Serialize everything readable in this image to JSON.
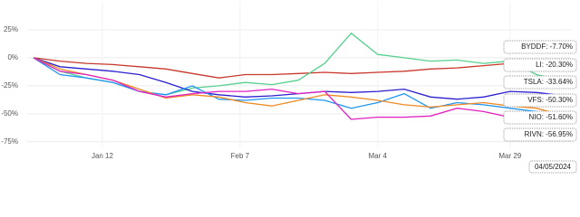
{
  "chart_data": {
    "type": "line",
    "x": [
      -2,
      3,
      8,
      13,
      18,
      23,
      28,
      33,
      38,
      43,
      48,
      53,
      58,
      63,
      68,
      73,
      78,
      83,
      88,
      93,
      98
    ],
    "xlim": [
      -3.2,
      99.5
    ],
    "xticks": [
      {
        "value": 11,
        "label": "Jan 12"
      },
      {
        "value": 37,
        "label": "Feb 7"
      },
      {
        "value": 63,
        "label": "Mar 4"
      },
      {
        "value": 88,
        "label": "Mar 29"
      }
    ],
    "ylim": [
      -80,
      50
    ],
    "yticks": [
      {
        "value": 25,
        "label": "25%"
      },
      {
        "value": 0,
        "label": "0%"
      },
      {
        "value": -25,
        "label": "-25%"
      },
      {
        "value": -50,
        "label": "-50%"
      },
      {
        "value": -75,
        "label": "-75%"
      }
    ],
    "grid": true,
    "series": [
      {
        "name": "BYDDF",
        "color": "#c8382c",
        "values": [
          0,
          -3,
          -5,
          -6,
          -8,
          -10,
          -14,
          -18,
          -15,
          -15,
          -14,
          -13,
          -14,
          -13,
          -12,
          -10,
          -9,
          -7,
          -5,
          -6,
          -7.7
        ]
      },
      {
        "name": "LI",
        "color": "#56d08e",
        "values": [
          0,
          -12,
          -18,
          -22,
          -30,
          -33,
          -27,
          -25,
          -22,
          -24,
          -20,
          -5,
          22,
          3,
          0,
          -3,
          -2,
          -5,
          -3,
          -15,
          -20.3
        ]
      },
      {
        "name": "TSLA",
        "color": "#2b1fd0",
        "values": [
          0,
          -8,
          -10,
          -12,
          -15,
          -22,
          -30,
          -33,
          -35,
          -34,
          -32,
          -30,
          -31,
          -30,
          -28,
          -35,
          -37,
          -35,
          -30,
          -31,
          -33.64
        ]
      },
      {
        "name": "VFS",
        "color": "#2196f3",
        "values": [
          0,
          -15,
          -18,
          -22,
          -30,
          -33,
          -25,
          -37,
          -38,
          -36,
          -36,
          -38,
          -45,
          -40,
          -32,
          -45,
          -40,
          -42,
          -45,
          -48,
          -50.3
        ]
      },
      {
        "name": "NIO",
        "color": "#f08a24",
        "values": [
          0,
          -10,
          -15,
          -20,
          -28,
          -36,
          -33,
          -35,
          -40,
          -43,
          -38,
          -33,
          -35,
          -38,
          -42,
          -44,
          -42,
          -40,
          -43,
          -45,
          -51.6
        ]
      },
      {
        "name": "RIVN",
        "color": "#e020c0",
        "values": [
          0,
          -12,
          -15,
          -20,
          -30,
          -35,
          -32,
          -30,
          -30,
          -28,
          -32,
          -30,
          -55,
          -53,
          -53,
          -52,
          -45,
          -48,
          -53,
          -56,
          -56.95
        ]
      }
    ],
    "tooltip": {
      "entries": [
        "BYDDF: -7.70%",
        "LI: -20.30%",
        "TSLA: -33.64%",
        "VFS: -50.30%",
        "NIO: -51.60%",
        "RIVN: -56.95%"
      ],
      "date": "04/05/2024"
    }
  }
}
